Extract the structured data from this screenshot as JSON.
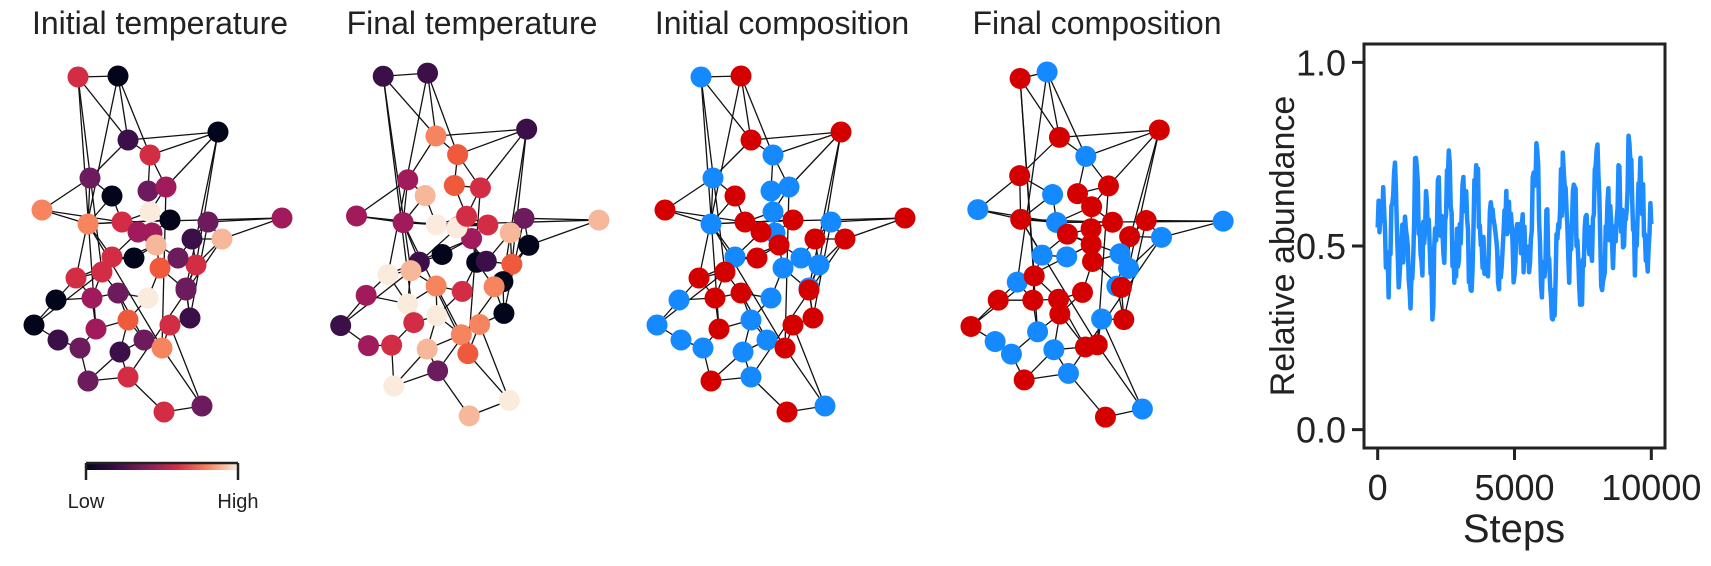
{
  "panels": [
    {
      "title": "Initial temperature",
      "kind": "temperature"
    },
    {
      "title": "Final temperature",
      "kind": "temperature"
    },
    {
      "title": "Initial composition",
      "kind": "composition"
    },
    {
      "title": "Final composition",
      "kind": "composition"
    }
  ],
  "colorbar": {
    "low_label": "Low",
    "high_label": "High",
    "colormap": "rocket"
  },
  "composition_colors": {
    "species_a": "#d40000",
    "species_b": "#1589ff"
  },
  "chart_data": {
    "type": "line",
    "title": "",
    "xlabel": "Steps",
    "ylabel": "Relative abundance",
    "xlim": [
      -500,
      10500
    ],
    "ylim": [
      -0.05,
      1.05
    ],
    "xticks": [
      0,
      5000,
      10000
    ],
    "yticks": [
      0.0,
      0.5,
      1.0
    ],
    "xtick_labels": [
      "0",
      "5000",
      "10000"
    ],
    "ytick_labels": [
      "0.0",
      "0.5",
      "1.0"
    ],
    "grid": false,
    "line_color": "#1e8cff",
    "series": [
      {
        "x": [
          0,
          200,
          400,
          600,
          800,
          1000,
          1200,
          1400,
          1600,
          1800,
          2000,
          2200,
          2400,
          2600,
          2800,
          3000,
          3200,
          3400,
          3600,
          3800,
          4000,
          4200,
          4400,
          4600,
          4800,
          5000,
          5200,
          5400,
          5600,
          5800,
          6000,
          6200,
          6400,
          6600,
          6800,
          7000,
          7200,
          7400,
          7600,
          7800,
          8000,
          8200,
          8400,
          8600,
          8800,
          9000,
          9200,
          9400,
          9600,
          9800,
          10000
        ],
        "y": [
          0.55,
          0.66,
          0.36,
          0.7,
          0.42,
          0.58,
          0.33,
          0.74,
          0.46,
          0.62,
          0.3,
          0.68,
          0.48,
          0.76,
          0.4,
          0.56,
          0.64,
          0.38,
          0.72,
          0.5,
          0.44,
          0.6,
          0.4,
          0.54,
          0.62,
          0.42,
          0.56,
          0.46,
          0.52,
          0.78,
          0.36,
          0.6,
          0.3,
          0.56,
          0.7,
          0.4,
          0.66,
          0.34,
          0.58,
          0.48,
          0.76,
          0.38,
          0.62,
          0.44,
          0.72,
          0.5,
          0.78,
          0.42,
          0.74,
          0.46,
          0.56
        ]
      }
    ]
  }
}
